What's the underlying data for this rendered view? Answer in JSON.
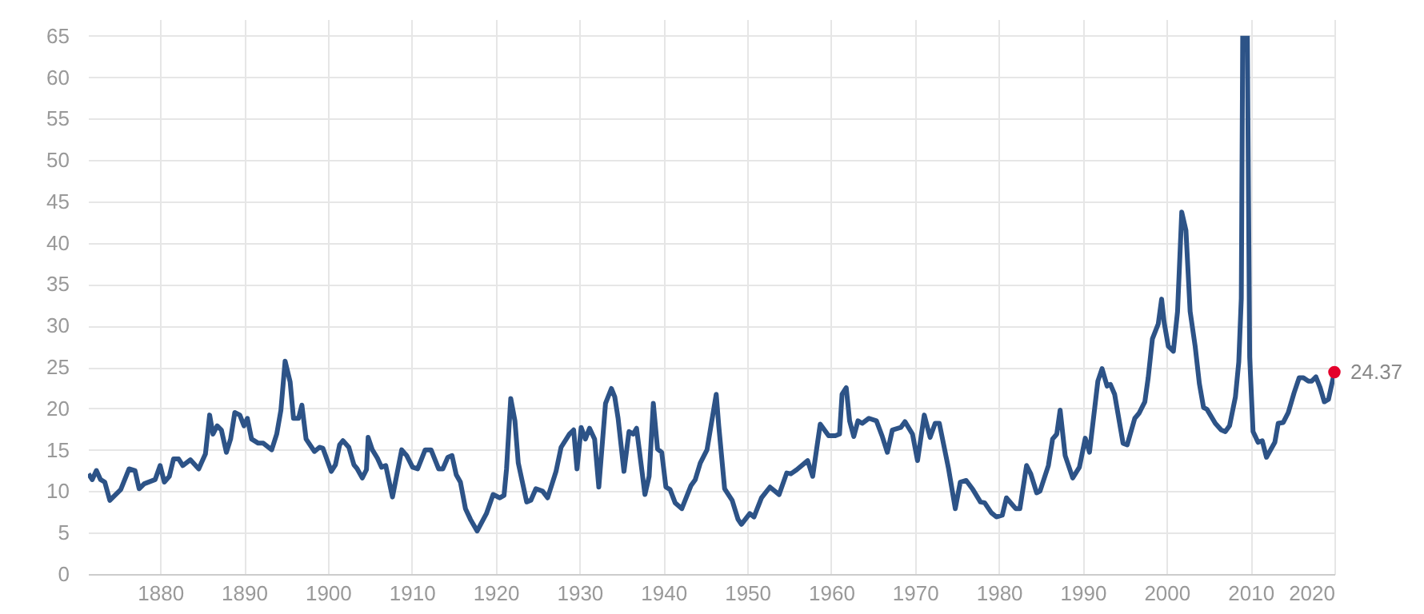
{
  "chart_data": {
    "type": "line",
    "x": [
      1871.45,
      1871.9,
      1872.4,
      1872.9,
      1873.4,
      1874.0,
      1874.6,
      1875.3,
      1876.3,
      1877.0,
      1877.5,
      1878.1,
      1879.4,
      1880.0,
      1880.5,
      1881.1,
      1881.6,
      1882.2,
      1882.7,
      1883.6,
      1884.6,
      1885.4,
      1885.9,
      1886.3,
      1886.8,
      1887.3,
      1887.9,
      1888.4,
      1888.9,
      1889.5,
      1890.0,
      1890.4,
      1890.9,
      1891.7,
      1892.3,
      1893.3,
      1893.9,
      1894.4,
      1894.9,
      1895.5,
      1895.9,
      1896.5,
      1896.9,
      1897.4,
      1898.4,
      1899.0,
      1899.4,
      1900.4,
      1900.9,
      1901.4,
      1901.8,
      1902.5,
      1903.1,
      1903.5,
      1904.1,
      1904.6,
      1904.8,
      1905.3,
      1905.9,
      1906.4,
      1906.9,
      1907.7,
      1908.8,
      1909.4,
      1910.1,
      1910.7,
      1911.6,
      1912.3,
      1913.2,
      1913.7,
      1914.3,
      1914.8,
      1915.3,
      1915.8,
      1916.4,
      1917.0,
      1917.8,
      1918.9,
      1919.7,
      1920.5,
      1921.0,
      1921.3,
      1921.8,
      1922.3,
      1922.7,
      1923.7,
      1924.2,
      1924.8,
      1925.6,
      1926.2,
      1927.2,
      1927.8,
      1928.8,
      1929.3,
      1929.7,
      1930.2,
      1930.7,
      1931.2,
      1931.8,
      1932.3,
      1933.1,
      1933.8,
      1934.2,
      1934.6,
      1935.3,
      1935.9,
      1936.4,
      1936.8,
      1937.8,
      1938.3,
      1938.8,
      1939.3,
      1939.8,
      1940.3,
      1940.8,
      1941.4,
      1942.2,
      1943.3,
      1943.8,
      1944.4,
      1945.2,
      1946.3,
      1946.6,
      1947.3,
      1948.2,
      1948.9,
      1949.3,
      1950.3,
      1950.8,
      1951.7,
      1952.7,
      1953.8,
      1954.7,
      1955.2,
      1955.9,
      1957.2,
      1957.8,
      1958.7,
      1959.7,
      1960.5,
      1961.0,
      1961.3,
      1961.8,
      1962.2,
      1962.7,
      1963.2,
      1963.7,
      1964.5,
      1965.4,
      1966.1,
      1966.7,
      1967.3,
      1968.3,
      1968.8,
      1969.7,
      1970.3,
      1971.1,
      1971.8,
      1972.4,
      1972.9,
      1974.0,
      1974.8,
      1975.4,
      1976.1,
      1976.9,
      1977.8,
      1978.3,
      1979.1,
      1979.7,
      1980.4,
      1980.9,
      1982.0,
      1982.5,
      1983.3,
      1983.8,
      1984.5,
      1984.9,
      1985.9,
      1986.4,
      1986.9,
      1987.3,
      1987.9,
      1988.8,
      1989.6,
      1990.3,
      1990.8,
      1991.8,
      1992.3,
      1992.9,
      1993.3,
      1993.8,
      1994.8,
      1995.3,
      1996.2,
      1996.7,
      1997.4,
      1997.8,
      1998.3,
      1999.0,
      1999.4,
      1999.7,
      2000.2,
      2000.8,
      2001.3,
      2001.8,
      2002.3,
      2002.8,
      2003.4,
      2003.9,
      2004.4,
      2004.8,
      2005.8,
      2006.5,
      2007.0,
      2007.5,
      2008.2,
      2008.6,
      2008.9,
      2009.07,
      2009.35,
      2009.62,
      2009.9,
      2010.3,
      2010.9,
      2011.4,
      2011.9,
      2012.9,
      2013.3,
      2013.9,
      2014.5,
      2015.2,
      2015.8,
      2016.3,
      2016.9,
      2017.3,
      2017.8,
      2018.3,
      2018.8,
      2019.3,
      2020.0
    ],
    "series": [
      {
        "color": "#2d5387",
        "values": [
          12.1,
          11.4,
          12.5,
          11.4,
          11.1,
          8.9,
          9.5,
          10.2,
          12.7,
          12.5,
          10.3,
          10.9,
          11.4,
          13.1,
          11.1,
          11.8,
          13.9,
          13.9,
          13.1,
          13.8,
          12.7,
          14.5,
          19.2,
          16.9,
          17.9,
          17.4,
          14.7,
          16.3,
          19.5,
          19.2,
          17.9,
          18.8,
          16.3,
          15.8,
          15.8,
          15.0,
          16.9,
          19.8,
          25.7,
          23.2,
          18.8,
          18.8,
          20.4,
          16.3,
          14.8,
          15.3,
          15.2,
          12.4,
          13.2,
          15.6,
          16.1,
          15.3,
          13.2,
          12.7,
          11.6,
          12.6,
          16.5,
          15.0,
          14.0,
          12.9,
          13.1,
          9.3,
          15.0,
          14.3,
          12.9,
          12.7,
          15.0,
          15.0,
          12.7,
          12.7,
          14.1,
          14.3,
          12.0,
          11.1,
          7.9,
          6.6,
          5.2,
          7.3,
          9.6,
          9.2,
          9.5,
          12.7,
          21.2,
          18.5,
          13.4,
          8.7,
          8.9,
          10.3,
          10.0,
          9.2,
          12.4,
          15.3,
          16.9,
          17.4,
          12.7,
          17.7,
          16.3,
          17.6,
          16.3,
          10.5,
          20.6,
          22.4,
          21.4,
          18.8,
          12.4,
          17.2,
          16.9,
          17.6,
          9.6,
          11.8,
          20.6,
          15.1,
          14.7,
          10.5,
          10.2,
          8.6,
          7.9,
          10.7,
          11.4,
          13.4,
          15.0,
          21.7,
          17.9,
          10.3,
          8.9,
          6.6,
          6.0,
          7.3,
          6.9,
          9.2,
          10.5,
          9.6,
          12.2,
          12.1,
          12.6,
          13.7,
          11.8,
          18.1,
          16.7,
          16.7,
          16.9,
          21.7,
          22.5,
          18.5,
          16.6,
          18.5,
          18.2,
          18.8,
          18.5,
          16.6,
          14.7,
          17.4,
          17.7,
          18.4,
          16.9,
          13.7,
          19.2,
          16.5,
          18.2,
          18.2,
          12.7,
          7.9,
          11.1,
          11.3,
          10.2,
          8.7,
          8.6,
          7.4,
          6.9,
          7.1,
          9.2,
          7.9,
          7.9,
          13.1,
          12.1,
          9.8,
          10.0,
          13.1,
          16.3,
          16.9,
          19.8,
          14.3,
          11.6,
          12.9,
          16.4,
          14.7,
          23.3,
          24.8,
          22.7,
          22.9,
          21.7,
          15.8,
          15.6,
          18.8,
          19.4,
          20.8,
          23.7,
          28.4,
          30.2,
          33.2,
          30.4,
          27.5,
          26.9,
          31.7,
          43.7,
          41.5,
          31.7,
          27.5,
          23.0,
          20.1,
          19.9,
          18.2,
          17.4,
          17.2,
          17.9,
          21.4,
          25.6,
          33.3,
          65,
          null,
          65,
          26.2,
          17.2,
          15.9,
          16.1,
          14.1,
          15.9,
          18.2,
          18.3,
          19.5,
          21.9,
          23.7,
          23.7,
          23.3,
          23.3,
          23.8,
          22.5,
          20.8,
          21.1,
          24.37
        ]
      }
    ],
    "xlim": [
      1871.4,
      2020
    ],
    "xticks": [
      1880,
      1890,
      1900,
      1910,
      1920,
      1930,
      1940,
      1950,
      1960,
      1970,
      1980,
      1990,
      2000,
      2010,
      2020
    ],
    "ylim": [
      0,
      67
    ],
    "yticks": [
      0,
      5,
      10,
      15,
      20,
      25,
      30,
      35,
      40,
      45,
      50,
      55,
      60,
      65
    ],
    "grid": true,
    "annotations": [
      {
        "text": "24.37",
        "x": 2020,
        "y": 24.37
      }
    ]
  }
}
